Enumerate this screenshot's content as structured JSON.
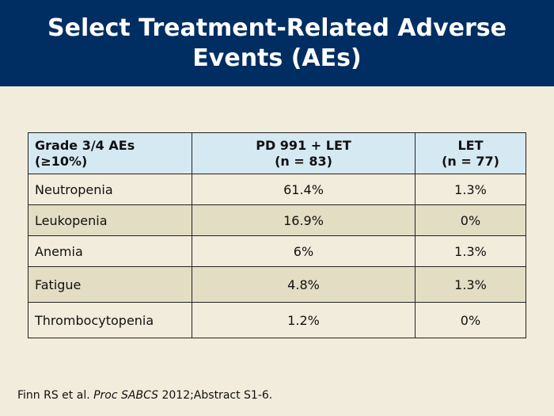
{
  "title": {
    "line1": "Select Treatment-Related Adverse",
    "line2": "Events (AEs)"
  },
  "table": {
    "headers": [
      {
        "line1": "Grade 3/4 AEs",
        "line2": "(≥10%)"
      },
      {
        "line1": "PD 991 + LET",
        "line2": "(n = 83)"
      },
      {
        "line1": "LET",
        "line2": "(n = 77)"
      }
    ],
    "rows": [
      {
        "ae": "Neutropenia",
        "pd991_let": "61.4%",
        "let": "1.3%"
      },
      {
        "ae": "Leukopenia",
        "pd991_let": "16.9%",
        "let": "0%"
      },
      {
        "ae": "Anemia",
        "pd991_let": "6%",
        "let": "1.3%"
      },
      {
        "ae": "Fatigue",
        "pd991_let": "4.8%",
        "let": "1.3%"
      },
      {
        "ae": "Thrombocytopenia",
        "pd991_let": "1.2%",
        "let": "0%"
      }
    ]
  },
  "citation": {
    "authors": "Finn RS et al. ",
    "journal": "Proc SABCS",
    "rest": " 2012;Abstract S1-6."
  },
  "colors": {
    "title_bar": "#002e62",
    "background": "#f2ecdc",
    "header_fill": "#d5e9f3",
    "alt_row_fill": "#e3ddc3"
  }
}
